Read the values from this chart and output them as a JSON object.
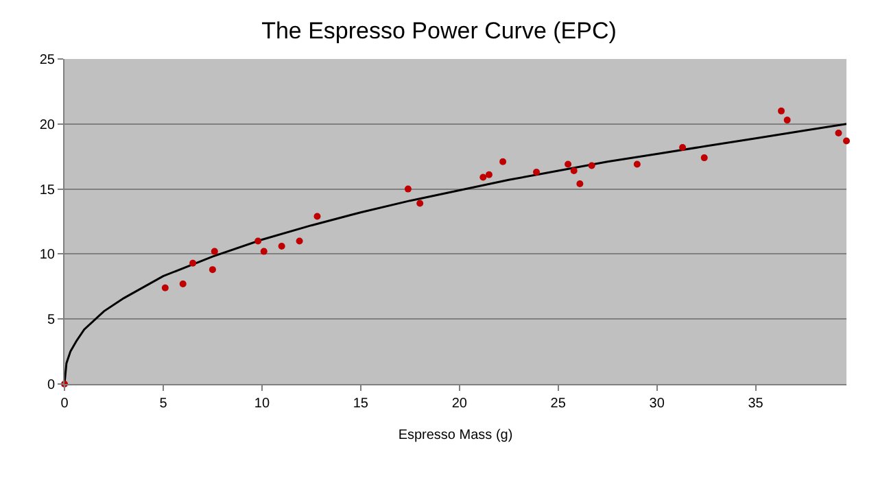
{
  "chart_data": {
    "type": "scatter",
    "title": "The Espresso Power Curve (EPC)",
    "xlabel": "Espresso Mass (g)",
    "series": [
      {
        "color": "#c00000",
        "x": [
          0,
          5.1,
          6.0,
          6.5,
          7.5,
          7.6,
          9.8,
          10.1,
          11.0,
          11.9,
          12.8,
          17.4,
          18.0,
          21.2,
          21.5,
          22.2,
          23.9,
          25.5,
          25.8,
          26.1,
          26.7,
          29.0,
          31.3,
          32.4,
          36.3,
          36.6,
          39.2,
          39.6
        ],
        "values": [
          0,
          7.4,
          7.7,
          9.3,
          8.8,
          10.2,
          11.0,
          10.2,
          10.6,
          11.0,
          12.9,
          15.0,
          13.9,
          15.9,
          16.1,
          17.1,
          16.3,
          16.9,
          16.4,
          15.4,
          16.8,
          16.9,
          18.2,
          17.4,
          21.0,
          20.3,
          19.3,
          18.7
        ]
      },
      {
        "type": "line",
        "marker": "none",
        "color": "#000000",
        "x": [
          0,
          0.1,
          0.3,
          0.6,
          1,
          2,
          3,
          5,
          7.5,
          10,
          12.5,
          15,
          17.5,
          20,
          22.5,
          25,
          27.5,
          30,
          32.5,
          35,
          37.5,
          39.6
        ],
        "values": [
          0,
          1.6,
          2.5,
          3.3,
          4.2,
          5.6,
          6.6,
          8.3,
          9.8,
          11.1,
          12.2,
          13.2,
          14.1,
          14.9,
          15.7,
          16.4,
          17.1,
          17.7,
          18.3,
          18.9,
          19.5,
          20.0
        ]
      }
    ],
    "xlim": [
      0,
      39.6
    ],
    "xticks": [
      0,
      5,
      10,
      15,
      20,
      25,
      30,
      35
    ],
    "ylim": [
      0,
      25
    ],
    "yticks": [
      0,
      5,
      10,
      15,
      20,
      25
    ],
    "grid": "y",
    "marker": "circle"
  }
}
